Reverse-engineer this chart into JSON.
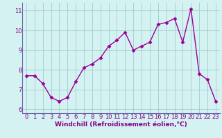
{
  "x": [
    0,
    1,
    2,
    3,
    4,
    5,
    6,
    7,
    8,
    9,
    10,
    11,
    12,
    13,
    14,
    15,
    16,
    17,
    18,
    19,
    20,
    21,
    22,
    23
  ],
  "y": [
    7.7,
    7.7,
    7.3,
    6.6,
    6.4,
    6.6,
    7.4,
    8.1,
    8.3,
    8.6,
    9.2,
    9.5,
    9.9,
    9.0,
    9.2,
    9.4,
    10.3,
    10.4,
    10.6,
    9.4,
    11.1,
    7.8,
    7.5,
    6.4
  ],
  "line_color": "#990099",
  "marker": "D",
  "markersize": 2.5,
  "linewidth": 1.0,
  "xlabel": "Windchill (Refroidissement éolien,°C)",
  "xlabel_fontsize": 6.5,
  "ylim": [
    5.8,
    11.4
  ],
  "xlim": [
    -0.5,
    23.5
  ],
  "yticks": [
    6,
    7,
    8,
    9,
    10,
    11
  ],
  "xticks": [
    0,
    1,
    2,
    3,
    4,
    5,
    6,
    7,
    8,
    9,
    10,
    11,
    12,
    13,
    14,
    15,
    16,
    17,
    18,
    19,
    20,
    21,
    22,
    23
  ],
  "bg_color": "#d5f2f2",
  "grid_color": "#a0cccc",
  "tick_color": "#880088",
  "tick_fontsize": 6.0,
  "xlabel_color": "#880088",
  "spine_color": "#6666aa"
}
